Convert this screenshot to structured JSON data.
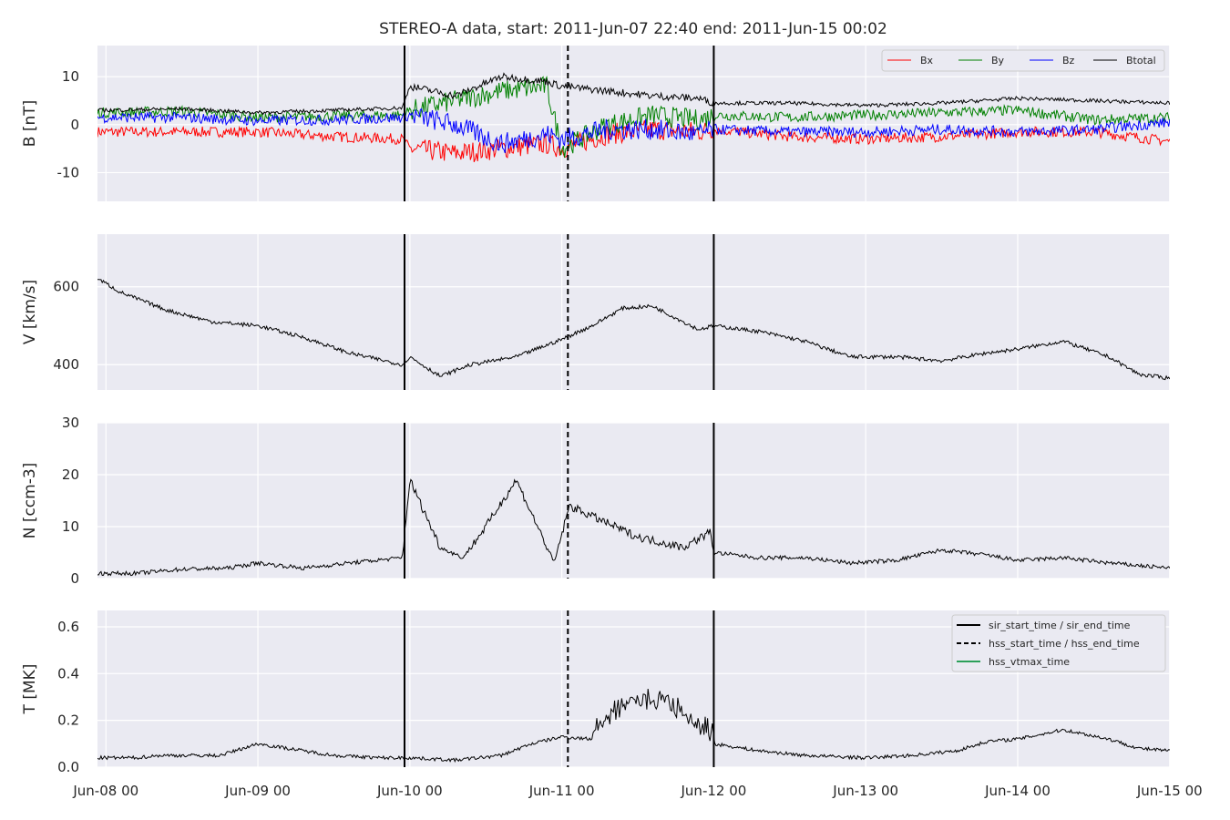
{
  "title": "STEREO-A data, start: 2011-Jun-07 22:40  end: 2011-Jun-15 00:02",
  "colors": {
    "panel_bg": "#eaeaf2",
    "grid": "#ffffff",
    "bx": "#ff0000",
    "by": "#008000",
    "bz": "#0000ff",
    "btotal": "#000000",
    "hss_vtmax": "#2ca05a"
  },
  "chart_data": [
    {
      "type": "line",
      "panel": "B",
      "ylabel": "B [nT]",
      "ylim": [
        -16,
        16.5
      ],
      "yticks": [
        10,
        0,
        -10
      ],
      "xticks": [
        "Jun-08 00",
        "Jun-09 00",
        "Jun-10 00",
        "Jun-11 00",
        "Jun-12 00",
        "Jun-13 00",
        "Jun-14 00",
        "Jun-15 00"
      ],
      "x_range": [
        "2011-06-07 22:40",
        "2011-06-15 00:02"
      ],
      "grid": true,
      "legend": "top-right",
      "series": [
        {
          "name": "Bx",
          "color": "#ff0000",
          "x_days": [
            -0.05,
            0.5,
            1.0,
            1.5,
            1.95,
            2.0,
            2.3,
            2.6,
            2.9,
            3.0,
            3.3,
            3.6,
            3.9,
            4.0,
            4.5,
            5.0,
            5.5,
            6.0,
            6.5,
            7.0
          ],
          "values": [
            -1.5,
            -1.5,
            -1.5,
            -2.5,
            -3,
            -5,
            -6,
            -5,
            -4,
            -5,
            -2,
            -1,
            -1.5,
            -1,
            -2.5,
            -3,
            -2.5,
            -1.5,
            -1.5,
            -3.5
          ]
        },
        {
          "name": "By",
          "color": "#008000",
          "x_days": [
            -0.05,
            0.5,
            1.0,
            1.5,
            1.95,
            2.0,
            2.3,
            2.6,
            2.9,
            3.0,
            3.3,
            3.6,
            3.9,
            4.0,
            4.5,
            5.0,
            5.5,
            6.0,
            6.5,
            7.0
          ],
          "values": [
            2.5,
            2.8,
            1.5,
            1.8,
            2,
            3,
            5,
            7,
            8,
            -5,
            0,
            2,
            1,
            2,
            1.5,
            2,
            2.5,
            3,
            1,
            1.5
          ]
        },
        {
          "name": "Bz",
          "color": "#0000ff",
          "x_days": [
            -0.05,
            0.5,
            1.0,
            1.5,
            1.95,
            2.0,
            2.3,
            2.6,
            2.9,
            3.0,
            3.3,
            3.6,
            3.9,
            4.0,
            4.5,
            5.0,
            5.5,
            6.0,
            6.5,
            7.0
          ],
          "values": [
            1.5,
            1.5,
            0.8,
            1,
            1.5,
            2,
            0,
            -4,
            -2,
            -3,
            -1,
            -1,
            -2,
            -1,
            -1.5,
            -1.5,
            -1,
            -1.5,
            -1,
            0.5
          ]
        },
        {
          "name": "Btotal",
          "color": "#000000",
          "x_days": [
            -0.05,
            0.5,
            1.0,
            1.5,
            1.95,
            2.0,
            2.3,
            2.6,
            2.9,
            3.0,
            3.3,
            3.6,
            3.9,
            4.0,
            4.5,
            5.0,
            5.5,
            6.0,
            6.5,
            7.0
          ],
          "values": [
            3,
            3.3,
            2.5,
            3,
            3.5,
            8,
            6,
            10,
            9,
            8,
            7,
            6,
            5.5,
            4.5,
            4.5,
            4,
            4.5,
            5.5,
            5,
            4.5
          ]
        }
      ]
    },
    {
      "type": "line",
      "panel": "V",
      "ylabel": "V [km/s]",
      "ylim": [
        335,
        735
      ],
      "yticks": [
        600,
        400
      ],
      "grid": true,
      "series": [
        {
          "name": "V",
          "color": "#000000",
          "x_days": [
            -0.05,
            0.1,
            0.4,
            0.7,
            1.0,
            1.3,
            1.6,
            1.95,
            2.0,
            2.2,
            2.4,
            2.7,
            3.0,
            3.2,
            3.4,
            3.6,
            3.9,
            4.0,
            4.3,
            4.6,
            4.9,
            5.2,
            5.5,
            5.8,
            6.0,
            6.3,
            6.6,
            6.8,
            7.0
          ],
          "values": [
            620,
            585,
            540,
            510,
            500,
            470,
            430,
            400,
            420,
            370,
            400,
            420,
            465,
            500,
            545,
            550,
            490,
            500,
            485,
            460,
            420,
            420,
            410,
            430,
            440,
            460,
            420,
            375,
            365
          ]
        }
      ]
    },
    {
      "type": "line",
      "panel": "N",
      "ylabel": "N [ccm-3]",
      "ylim": [
        0,
        30
      ],
      "yticks": [
        30,
        20,
        10,
        0
      ],
      "grid": true,
      "series": [
        {
          "name": "N",
          "color": "#000000",
          "x_days": [
            -0.05,
            0.2,
            0.5,
            0.8,
            1.0,
            1.3,
            1.6,
            1.95,
            2.0,
            2.2,
            2.35,
            2.5,
            2.7,
            2.95,
            3.05,
            3.2,
            3.5,
            3.8,
            3.98,
            4.0,
            4.3,
            4.6,
            4.9,
            5.2,
            5.5,
            5.8,
            6.0,
            6.3,
            6.6,
            6.8,
            7.0
          ],
          "values": [
            1,
            1,
            1.8,
            2,
            3,
            2,
            3,
            4,
            19,
            6,
            4,
            10,
            19,
            3,
            14,
            12,
            8,
            6,
            9,
            5,
            4,
            4,
            3,
            3.5,
            5.5,
            4.5,
            3.5,
            4,
            3,
            2.5,
            2
          ]
        }
      ]
    },
    {
      "type": "line",
      "panel": "T",
      "ylabel": "T [MK]",
      "ylim": [
        0,
        0.67
      ],
      "yticks": [
        0.6,
        0.4,
        0.2,
        0.0
      ],
      "grid": true,
      "legend": "top-right",
      "legend_entries": [
        "sir_start_time / sir_end_time",
        "hss_start_time / hss_end_time",
        "hss_vtmax_time"
      ],
      "series": [
        {
          "name": "T",
          "color": "#000000",
          "x_days": [
            -0.05,
            0.2,
            0.35,
            0.5,
            0.75,
            1.0,
            1.2,
            1.5,
            1.8,
            2.0,
            2.3,
            2.6,
            2.8,
            3.0,
            3.2,
            3.4,
            3.6,
            3.8,
            4.0,
            4.3,
            4.6,
            5.0,
            5.3,
            5.6,
            5.8,
            6.0,
            6.3,
            6.6,
            6.8,
            7.0
          ],
          "values": [
            0.04,
            0.04,
            0.05,
            0.05,
            0.05,
            0.1,
            0.08,
            0.05,
            0.04,
            0.04,
            0.03,
            0.05,
            0.1,
            0.13,
            0.12,
            0.22,
            0.25,
            0.2,
            0.1,
            0.07,
            0.05,
            0.04,
            0.05,
            0.07,
            0.11,
            0.12,
            0.16,
            0.12,
            0.08,
            0.07
          ]
        }
      ]
    }
  ],
  "markers": {
    "sir_lines_days": [
      1.965,
      4.0
    ],
    "hss_lines_days": [
      3.04
    ]
  }
}
